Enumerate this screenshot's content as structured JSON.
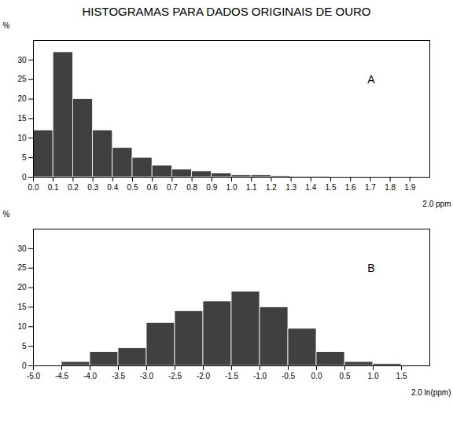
{
  "title": "HISTOGRAMAS PARA DADOS ORIGINAIS DE OURO",
  "chart_data": [
    {
      "type": "histogram",
      "annotation": "A",
      "bins": [
        0.0,
        0.1,
        0.2,
        0.3,
        0.4,
        0.5,
        0.6,
        0.7,
        0.8,
        0.9,
        1.0,
        1.1,
        1.2,
        1.3,
        1.4,
        1.5,
        1.6,
        1.7,
        1.8,
        1.9,
        2.0
      ],
      "values": [
        12,
        32,
        20,
        12,
        7.5,
        5,
        3,
        2,
        1.5,
        1,
        0.5,
        0.5,
        0.3,
        0.2,
        0.2,
        0.1,
        0.1,
        0.1,
        0.1,
        0.1
      ],
      "xlabel": "2.0 ppm",
      "ylabel": "%",
      "xlim": [
        0.0,
        2.0
      ],
      "xticks": [
        {
          "value": 0.0,
          "label": "0.0"
        },
        0.1,
        0.2,
        0.3,
        0.4,
        0.5,
        0.6,
        0.7,
        0.8,
        0.9,
        {
          "value": 1.0,
          "label": "1.0"
        },
        1.1,
        1.2,
        1.3,
        1.4,
        1.5,
        1.6,
        1.7,
        1.8,
        1.9
      ],
      "ylim": [
        0,
        35
      ],
      "yticks": [
        0,
        5,
        10,
        15,
        20,
        25,
        30
      ]
    },
    {
      "type": "histogram",
      "annotation": "B",
      "bins": [
        -5.0,
        -4.5,
        -4.0,
        -3.5,
        -3.0,
        -2.5,
        -2.0,
        -1.5,
        -1.0,
        -0.5,
        0.0,
        0.5,
        1.0,
        1.5,
        2.0
      ],
      "values": [
        0,
        1,
        3.5,
        4.5,
        11,
        14,
        16.5,
        19,
        15,
        9.5,
        3.5,
        1,
        0.5,
        0
      ],
      "xlabel": "2.0 ln(ppm)",
      "ylabel": "%",
      "xlim": [
        -5.0,
        2.0
      ],
      "xticks": [
        {
          "value": -5.0,
          "label": "-5.0"
        },
        -4.5,
        {
          "value": -4.0,
          "label": "-4.0"
        },
        -3.5,
        {
          "value": -3.0,
          "label": "-3.0"
        },
        -2.5,
        {
          "value": -2.0,
          "label": "-2.0"
        },
        -1.5,
        {
          "value": -1.0,
          "label": "-1.0"
        },
        -0.5,
        {
          "value": 0.0,
          "label": "0.0"
        },
        0.5,
        {
          "value": 1.0,
          "label": "1.0"
        },
        1.5
      ],
      "ylim": [
        0,
        35
      ],
      "yticks": [
        0,
        5,
        10,
        15,
        20,
        25,
        30
      ]
    }
  ]
}
